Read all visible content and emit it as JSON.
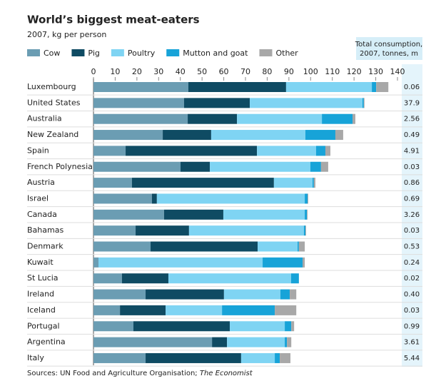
{
  "chart_data": {
    "type": "stacked-bar-horizontal",
    "title": "World’s biggest meat-eaters",
    "subtitle": "2007, kg per person",
    "categories": [
      "Luxembourg",
      "United States",
      "Australia",
      "New Zealand",
      "Spain",
      "French Polynesia",
      "Austria",
      "Israel",
      "Canada",
      "Bahamas",
      "Denmark",
      "Kuwait",
      "St Lucia",
      "Ireland",
      "Iceland",
      "Portugal",
      "Argentina",
      "Italy"
    ],
    "series": [
      {
        "name": "Cow",
        "color": "#6b9db3",
        "values": [
          43.7,
          41.7,
          43.4,
          31.9,
          14.8,
          40.1,
          17.7,
          26.9,
          32.5,
          19.4,
          26.3,
          2.3,
          13.1,
          24.0,
          12.2,
          18.4,
          54.6,
          24.0
        ]
      },
      {
        "name": "Pig",
        "color": "#0f4b63",
        "values": [
          45.0,
          30.3,
          22.7,
          22.3,
          60.5,
          13.5,
          65.4,
          2.3,
          27.3,
          24.6,
          49.3,
          0,
          21.4,
          36.1,
          21.0,
          44.4,
          6.9,
          44.0
        ]
      },
      {
        "name": "Poultry",
        "color": "#7fd4f3",
        "values": [
          39.5,
          51.9,
          39.1,
          43.4,
          27.2,
          46.3,
          17.8,
          68.1,
          37.5,
          52.9,
          18.4,
          75.6,
          56.5,
          26.0,
          26.0,
          25.3,
          26.6,
          15.5
        ]
      },
      {
        "name": "Mutton and goat",
        "color": "#17a3d8",
        "values": [
          2.0,
          0.6,
          14.1,
          13.8,
          4.3,
          4.9,
          0.6,
          1.3,
          1.0,
          0.7,
          0.6,
          18.4,
          3.6,
          4.3,
          24.3,
          3.0,
          1.0,
          2.3
        ]
      },
      {
        "name": "Other",
        "color": "#a8a8a8",
        "values": [
          5.6,
          0.3,
          1.3,
          3.6,
          2.3,
          3.3,
          0.7,
          0.3,
          0.3,
          0.3,
          2.7,
          1.0,
          0,
          3.0,
          9.9,
          1.3,
          2.0,
          4.9
        ]
      }
    ],
    "xlim": [
      0,
      140
    ],
    "xticks": [
      0,
      10,
      20,
      30,
      40,
      50,
      60,
      70,
      80,
      90,
      100,
      110,
      120,
      130,
      140
    ],
    "consumption": {
      "title_lines": [
        "Total consumption,",
        "2007, tonnes, m"
      ],
      "values": [
        0.06,
        37.9,
        2.56,
        0.49,
        4.91,
        0.03,
        0.86,
        0.69,
        3.26,
        0.03,
        0.53,
        0.24,
        0.02,
        0.4,
        0.03,
        0.99,
        3.61,
        5.44
      ],
      "value_labels": [
        "0.06",
        "37.9",
        "2.56",
        "0.49",
        "4.91",
        "0.03",
        "0.86",
        "0.69",
        "3.26",
        "0.03",
        "0.53",
        "0.24",
        "0.02",
        "0.40",
        "0.03",
        "0.99",
        "3.61",
        "5.44"
      ]
    },
    "source": [
      "Sources: UN Food and Agriculture Organisation;",
      "The Economist"
    ]
  }
}
